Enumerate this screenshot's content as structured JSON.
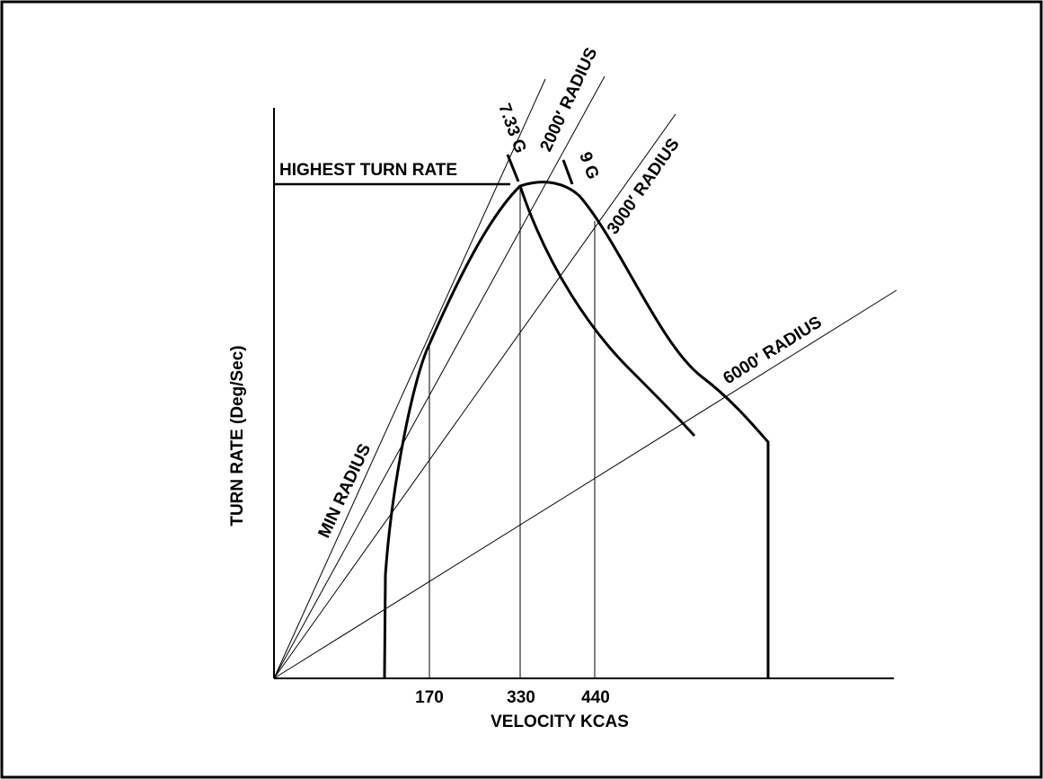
{
  "chart_data": {
    "type": "line",
    "title": "",
    "xlabel": "VELOCITY KCAS",
    "ylabel": "TURN RATE (Deg/Sec)",
    "x_ticks": [
      "170",
      "330",
      "440"
    ],
    "grid": false,
    "legend": "none",
    "annotations": {
      "highest_turn_rate": "HIGHEST TURN RATE",
      "min_radius": "MIN RADIUS",
      "radius_2000": "2000′ RADIUS",
      "radius_3000": "3000′ RADIUS",
      "radius_6000": "6000′ RADIUS",
      "g_733": "7.33 G",
      "g_9": "9 G"
    }
  }
}
